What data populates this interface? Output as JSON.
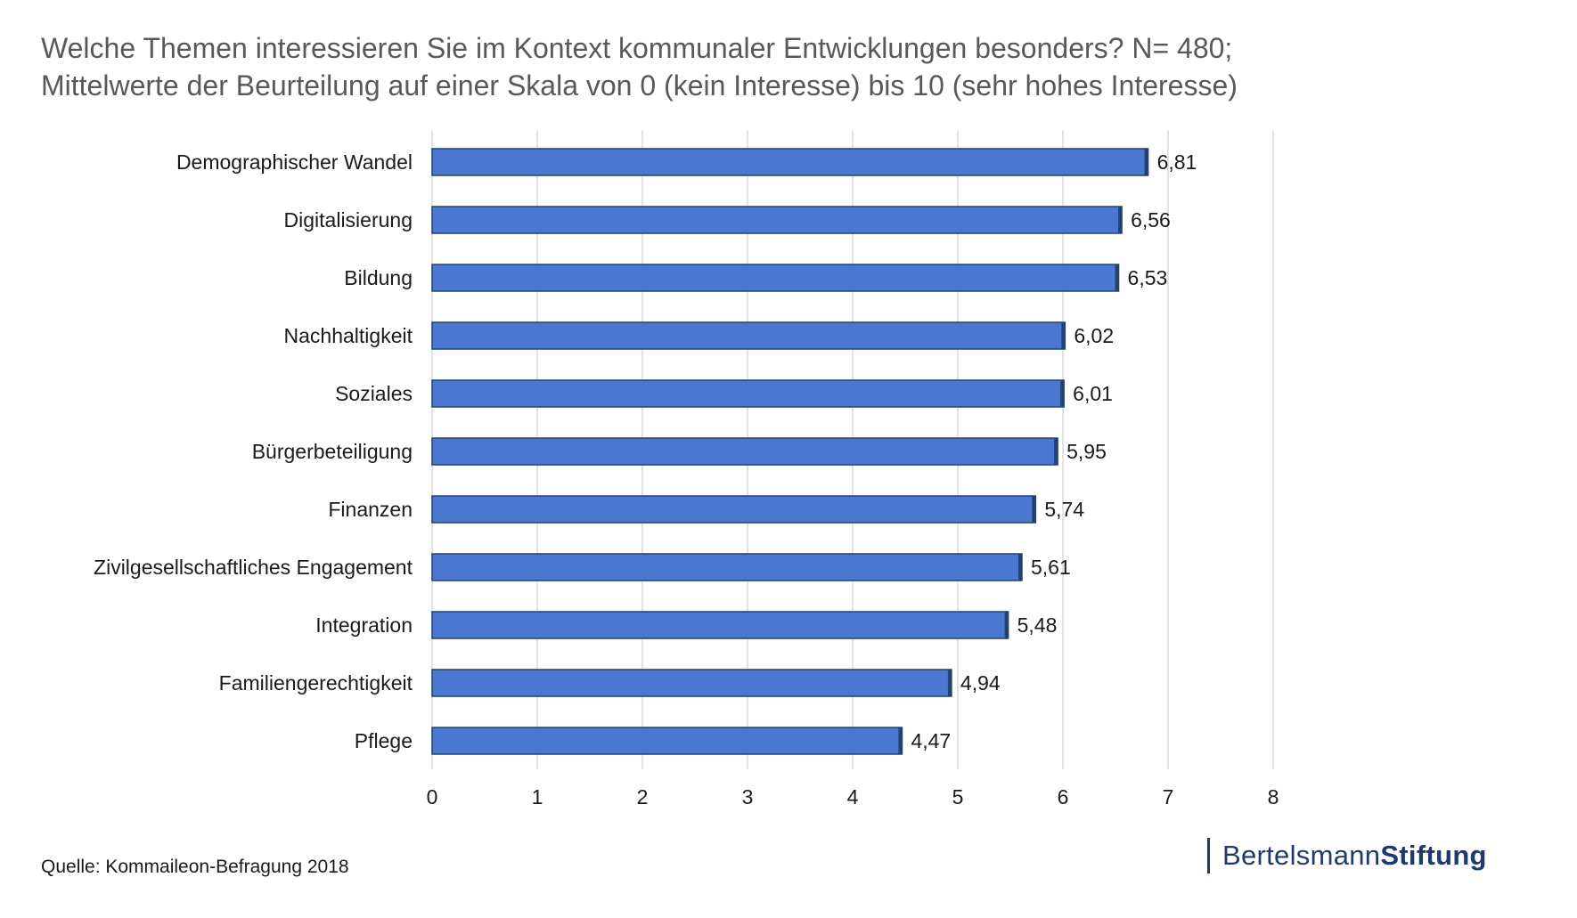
{
  "title_line1": "Welche Themen interessieren Sie im Kontext kommunaler Entwicklungen besonders? N= 480;",
  "title_line2": "Mittelwerte der Beurteilung auf einer Skala von 0 (kein Interesse) bis 10 (sehr hohes Interesse)",
  "source": "Quelle: Kommaileon-Befragung 2018",
  "logo": {
    "part1": "Bertelsmann",
    "part2": "Stiftung"
  },
  "colors": {
    "bar": "#4a78d1",
    "bar_edge": "#24426f",
    "grid": "#d9d9d9",
    "logo": "#1f3a6e"
  },
  "chart_data": {
    "type": "bar",
    "orientation": "horizontal",
    "categories": [
      "Demographischer Wandel",
      "Digitalisierung",
      "Bildung",
      "Nachhaltigkeit",
      "Soziales",
      "Bürgerbeteiligung",
      "Finanzen",
      "Zivilgesellschaftliches Engagement",
      "Integration",
      "Familiengerechtigkeit",
      "Pflege"
    ],
    "values": [
      6.81,
      6.56,
      6.53,
      6.02,
      6.01,
      5.95,
      5.74,
      5.61,
      5.48,
      4.94,
      4.47
    ],
    "value_labels": [
      "6,81",
      "6,56",
      "6,53",
      "6,02",
      "6,01",
      "5,95",
      "5,74",
      "5,61",
      "5,48",
      "4,94",
      "4,47"
    ],
    "xlim": [
      0,
      8
    ],
    "xticks": [
      0,
      1,
      2,
      3,
      4,
      5,
      6,
      7,
      8
    ],
    "grid": true,
    "legend": "none"
  }
}
